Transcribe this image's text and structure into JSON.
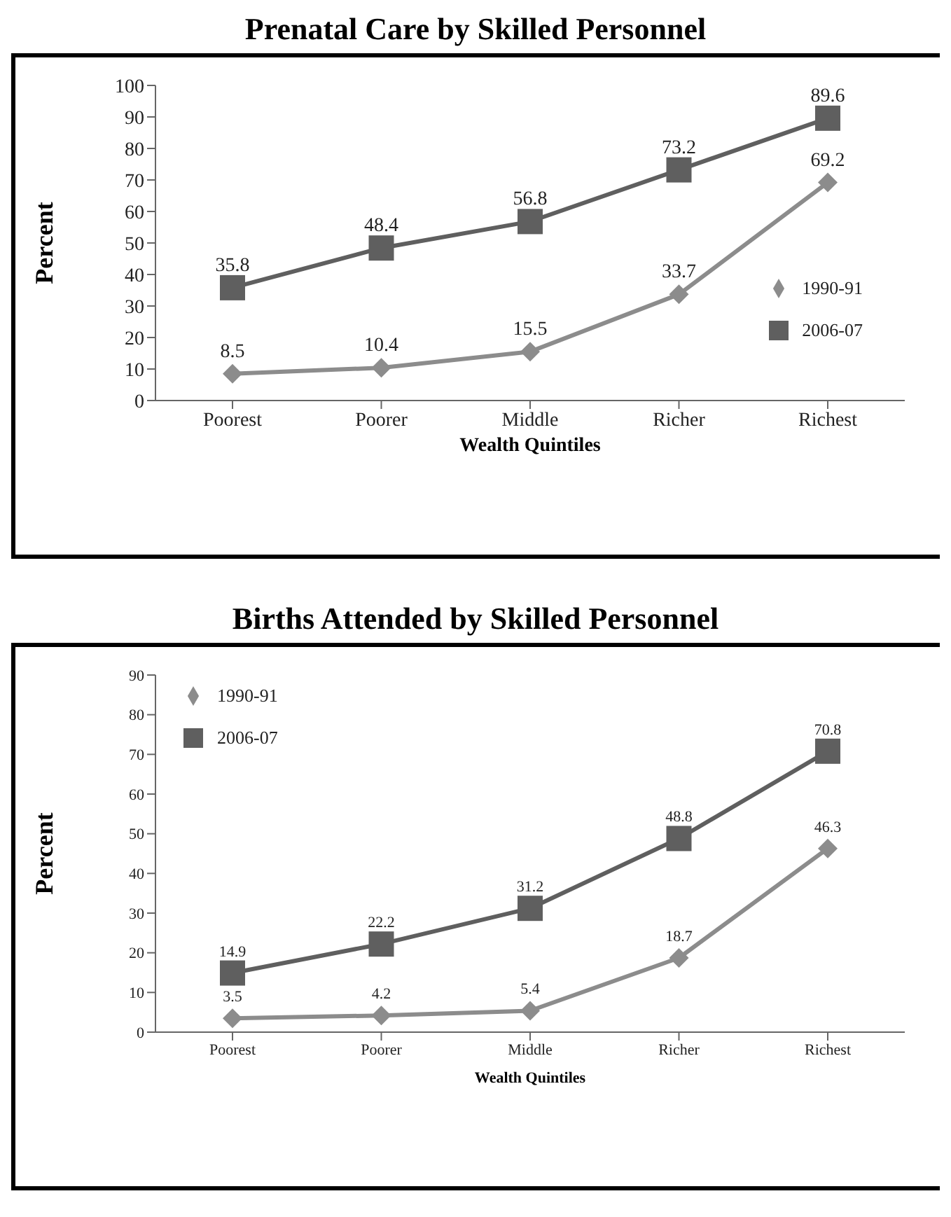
{
  "chart_data": [
    {
      "type": "line",
      "title": "Prenatal Care by Skilled Personnel",
      "xlabel": "Wealth Quintiles",
      "ylabel": "Percent",
      "categories": [
        "Poorest",
        "Poorer",
        "Middle",
        "Richer",
        "Richest"
      ],
      "series": [
        {
          "name": "1990-91",
          "color": "#8c8c8c",
          "marker": "diamond",
          "values": [
            8.5,
            10.4,
            15.5,
            33.7,
            69.2
          ]
        },
        {
          "name": "2006-07",
          "color": "#5f5f5f",
          "marker": "square",
          "values": [
            35.8,
            48.4,
            56.8,
            73.2,
            89.6
          ]
        }
      ],
      "ylim": [
        0,
        100
      ],
      "yticks": [
        0,
        10,
        20,
        30,
        40,
        50,
        60,
        70,
        80,
        90,
        100
      ],
      "data_labels": true,
      "legend": "bottom right",
      "grid": false
    },
    {
      "type": "line",
      "title": "Births Attended by Skilled Personnel",
      "xlabel": "Wealth Quintiles",
      "ylabel": "Percent",
      "categories": [
        "Poorest",
        "Poorer",
        "Middle",
        "Richer",
        "Richest"
      ],
      "series": [
        {
          "name": "1990-91",
          "color": "#8c8c8c",
          "marker": "diamond",
          "values": [
            3.5,
            4.2,
            5.4,
            18.7,
            46.3
          ]
        },
        {
          "name": "2006-07",
          "color": "#5f5f5f",
          "marker": "square",
          "values": [
            14.9,
            22.2,
            31.2,
            48.8,
            70.8
          ]
        }
      ],
      "ylim": [
        0,
        90
      ],
      "yticks": [
        0,
        10,
        20,
        30,
        40,
        50,
        60,
        70,
        80,
        90
      ],
      "data_labels": true,
      "legend": "top left",
      "grid": false
    }
  ]
}
